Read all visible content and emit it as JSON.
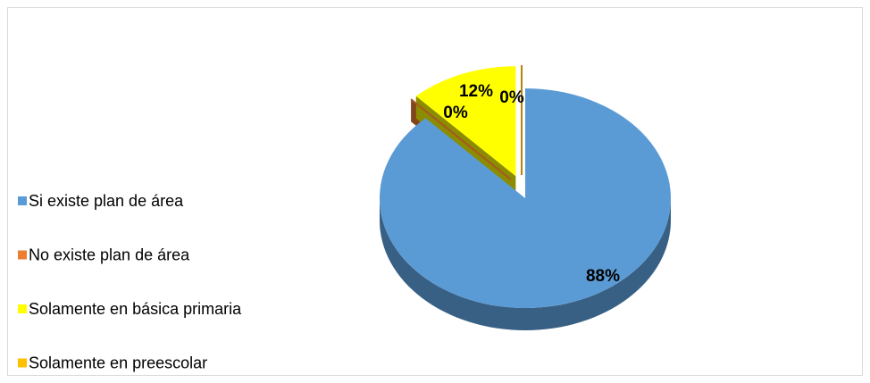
{
  "chart_data": {
    "type": "pie",
    "categories": [
      "Si existe plan de área",
      "No existe plan de área",
      "Solamente en básica primaria",
      "Solamente en preescolar"
    ],
    "values": [
      88,
      0,
      12,
      0
    ],
    "value_labels": [
      "88%",
      "0%",
      "12%",
      "0%"
    ],
    "colors": [
      "#5b9bd5",
      "#ed7d31",
      "#ffff00",
      "#ffc000"
    ],
    "legend": "left"
  }
}
